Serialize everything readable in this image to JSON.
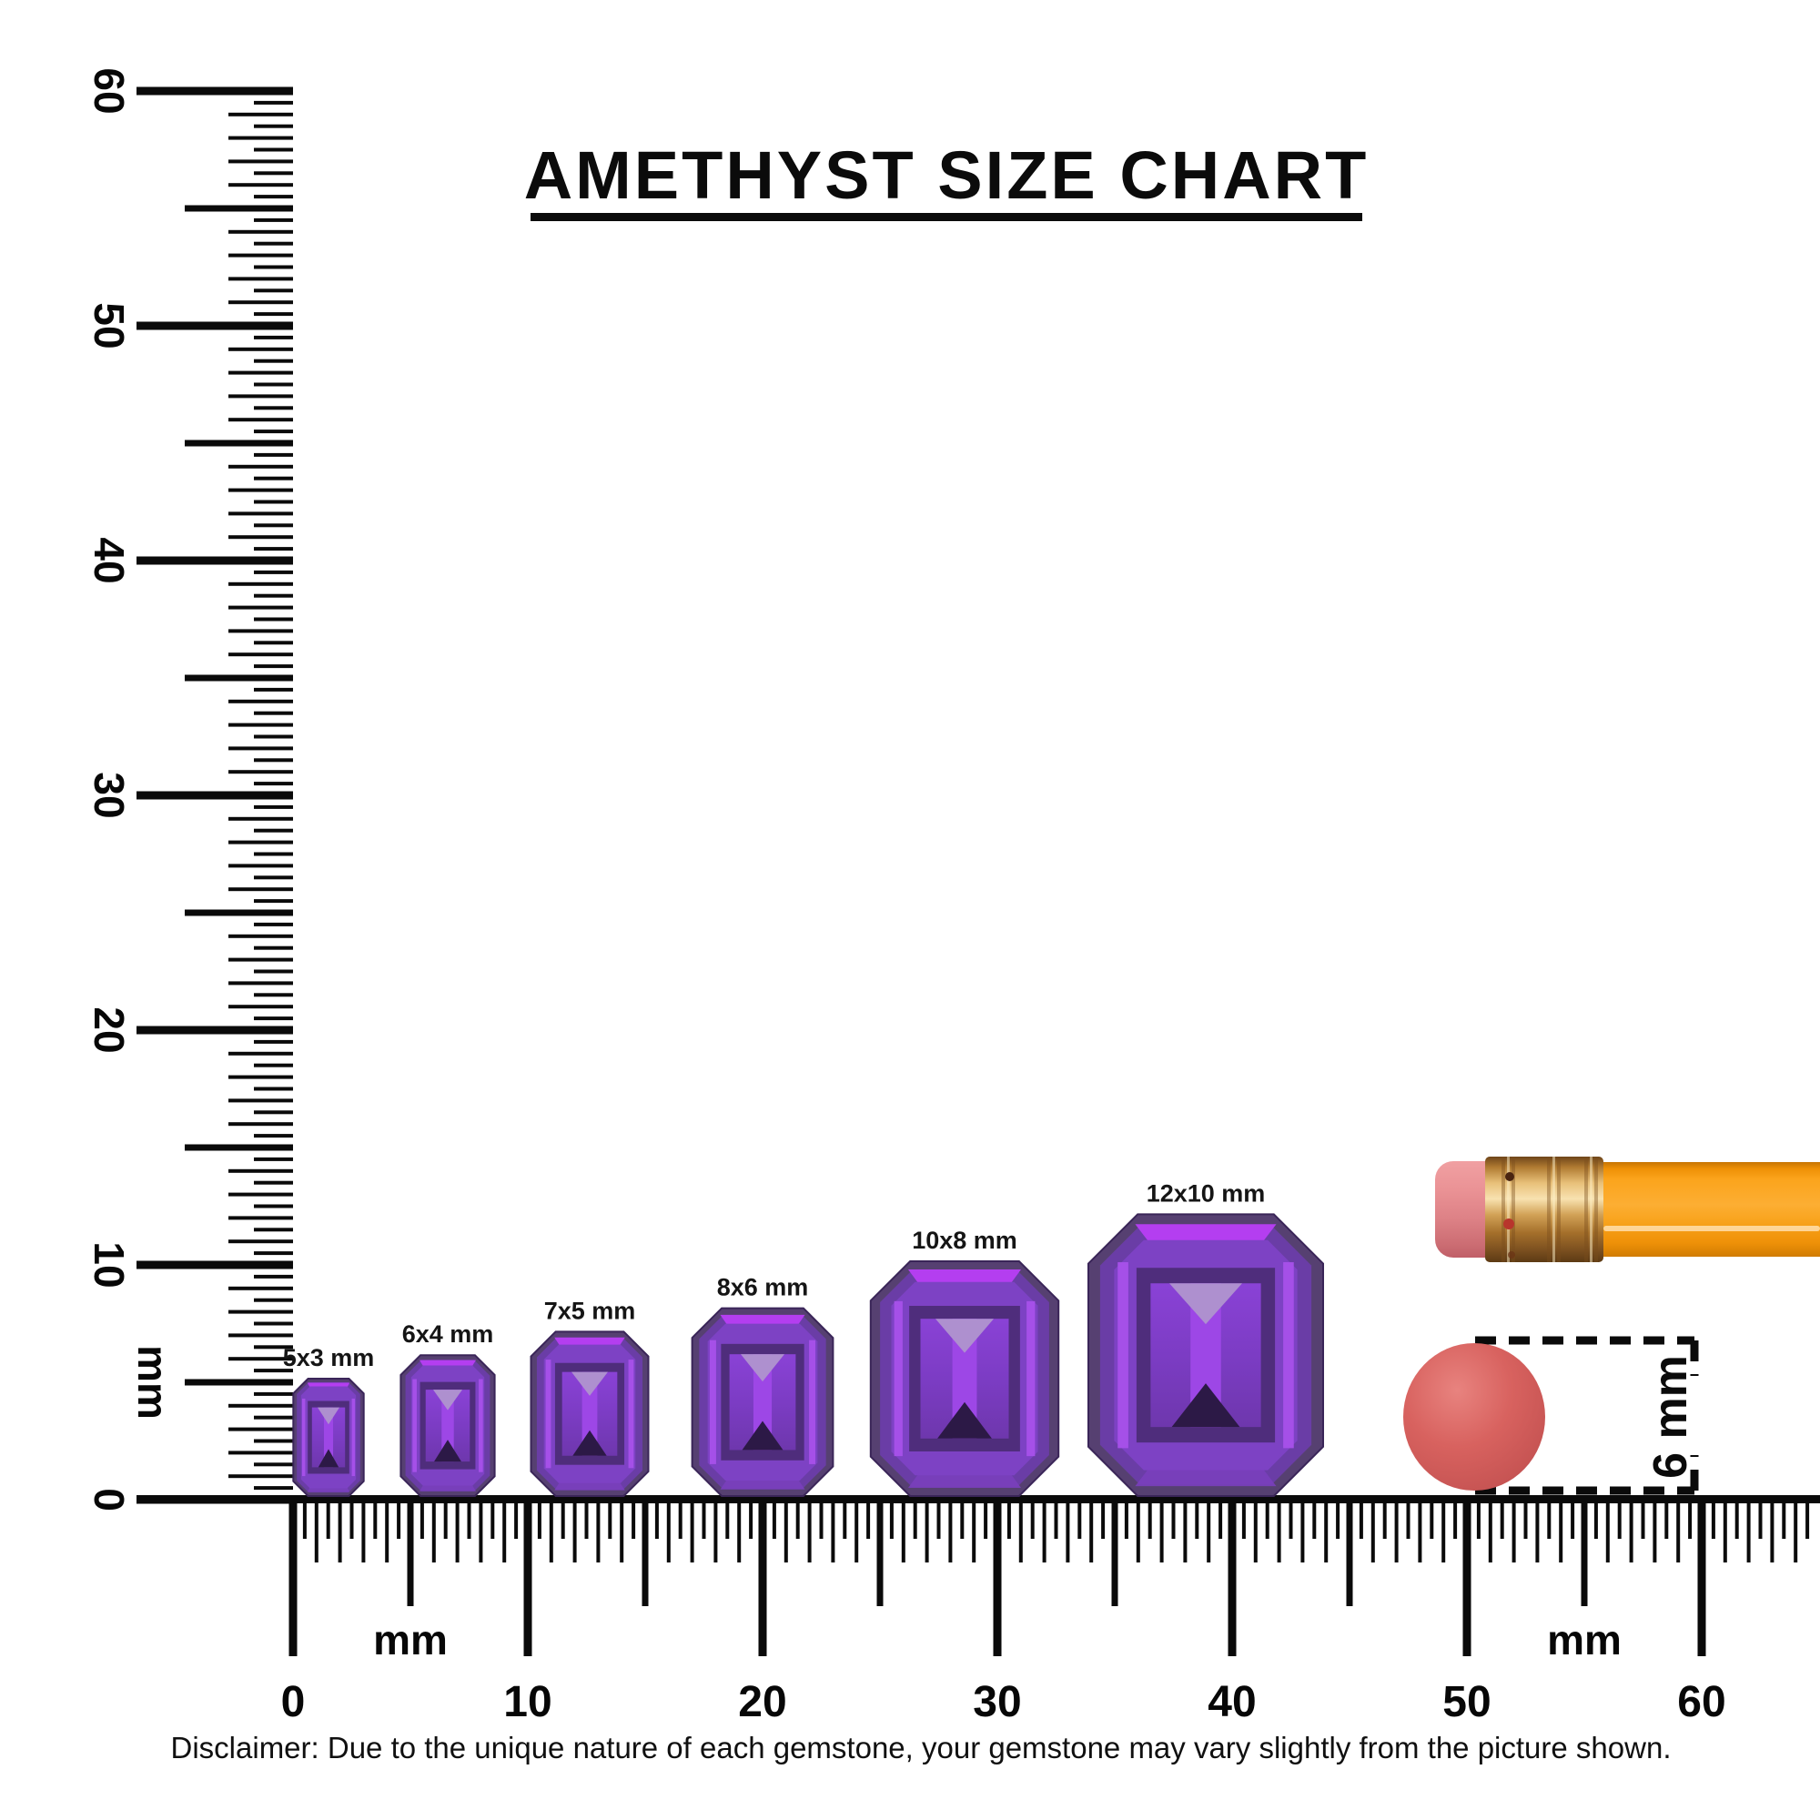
{
  "title": "AMETHYST SIZE CHART",
  "left_ruler": {
    "unit": "mm",
    "numbers": [
      0,
      10,
      20,
      30,
      40,
      50,
      60
    ]
  },
  "bottom_ruler": {
    "unit_first": "mm",
    "unit_second": "mm",
    "numbers": [
      0,
      10,
      20,
      30,
      40,
      50,
      60
    ]
  },
  "gems": [
    {
      "label": "5x3 mm",
      "length_mm": 5,
      "width_mm": 3
    },
    {
      "label": "6x4 mm",
      "length_mm": 6,
      "width_mm": 4
    },
    {
      "label": "7x5 mm",
      "length_mm": 7,
      "width_mm": 5
    },
    {
      "label": "8x6 mm",
      "length_mm": 8,
      "width_mm": 6
    },
    {
      "label": "10x8 mm",
      "length_mm": 10,
      "width_mm": 8
    },
    {
      "label": "12x10 mm",
      "length_mm": 12,
      "width_mm": 10
    }
  ],
  "eraser_dot": {
    "label": "6 mm",
    "diameter_mm": 6,
    "color": "#d5605f"
  },
  "pencil": {
    "body_color": "#f9a21b",
    "ferrule_color": "#d9a454",
    "eraser_color": "#e2878d"
  },
  "disclaimer": "Disclaimer: Due to the unique nature of each gemstone, your gemstone may vary slightly from the picture shown.",
  "colors": {
    "ink": "#0a0a0a",
    "gem_outline": "#564071",
    "gem_ring1": "#6a3da6",
    "gem_flash": "#b43ef0",
    "gem_band_bottom": "#7a3fbd",
    "gem_ring2": "#7d42c4",
    "gem_stripe": "#a851ea",
    "gem_panel": "#4f2d7c",
    "gem_inner_top": "#8a42d6",
    "gem_inner_bottom": "#6e37ad",
    "gem_center": "#9d47e6",
    "gem_tri_light": "#ae90cf",
    "gem_tri_dark": "#2c1946"
  }
}
